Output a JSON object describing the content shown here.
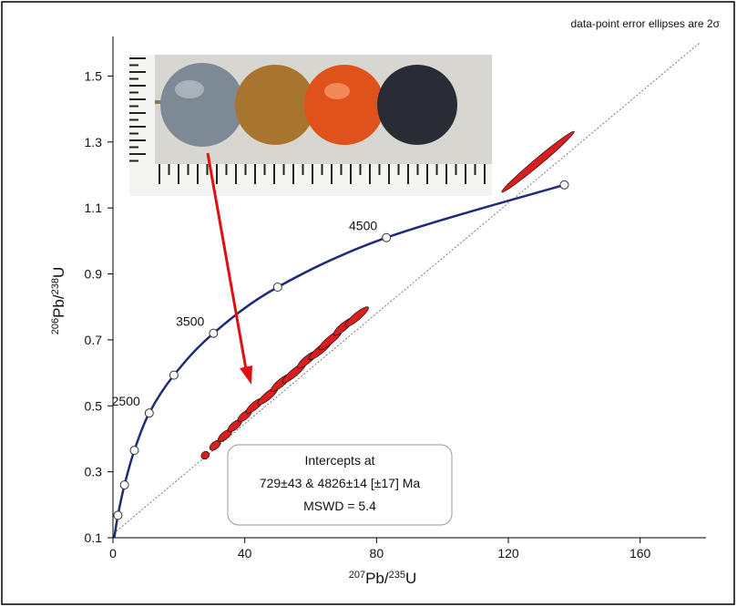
{
  "chart_data": {
    "type": "concordia",
    "note": "data-point error ellipses are 2σ",
    "x_label": {
      "sup": "207",
      "main1": "Pb/",
      "sup2": "235",
      "main2": "U"
    },
    "y_label": {
      "sup": "206",
      "main1": "Pb/",
      "sup2": "238",
      "main2": "U"
    },
    "xlim": [
      0,
      180
    ],
    "ylim": [
      0.1,
      1.62
    ],
    "xticks": [
      0,
      40,
      80,
      120,
      160
    ],
    "yticks": [
      0.1,
      0.3,
      0.5,
      0.7,
      0.9,
      1.1,
      1.3,
      1.5
    ],
    "concordia": {
      "color": "#1f2a7a",
      "x": [
        0.4,
        1.5,
        3.5,
        6.5,
        11,
        18.5,
        30.5,
        50,
        83,
        137
      ],
      "y": [
        0.1,
        0.168,
        0.26,
        0.365,
        0.478,
        0.593,
        0.72,
        0.86,
        1.01,
        1.17
      ]
    },
    "age_labels": [
      "2500",
      "3500",
      "4500"
    ],
    "discordia": {
      "x": [
        1.06,
        178
      ],
      "y": [
        0.12,
        1.6
      ]
    },
    "ellipses": {
      "color": "#d81e1e",
      "x": [
        28,
        31,
        34,
        37,
        40,
        43,
        47,
        51,
        55,
        59,
        63,
        66,
        70,
        74,
        129
      ],
      "y": [
        0.35,
        0.38,
        0.41,
        0.44,
        0.47,
        0.5,
        0.53,
        0.57,
        0.6,
        0.64,
        0.67,
        0.7,
        0.74,
        0.77,
        1.24
      ],
      "x_err": [
        1,
        1.5,
        2,
        2,
        2,
        2.5,
        3,
        3,
        3.5,
        3,
        3.5,
        3.5,
        3,
        3.5,
        11
      ]
    },
    "result": {
      "line1": "Intercepts at",
      "line2": "729±43 & 4826±14  [±17]  Ma",
      "line3": "MSWD = 5.4"
    }
  }
}
